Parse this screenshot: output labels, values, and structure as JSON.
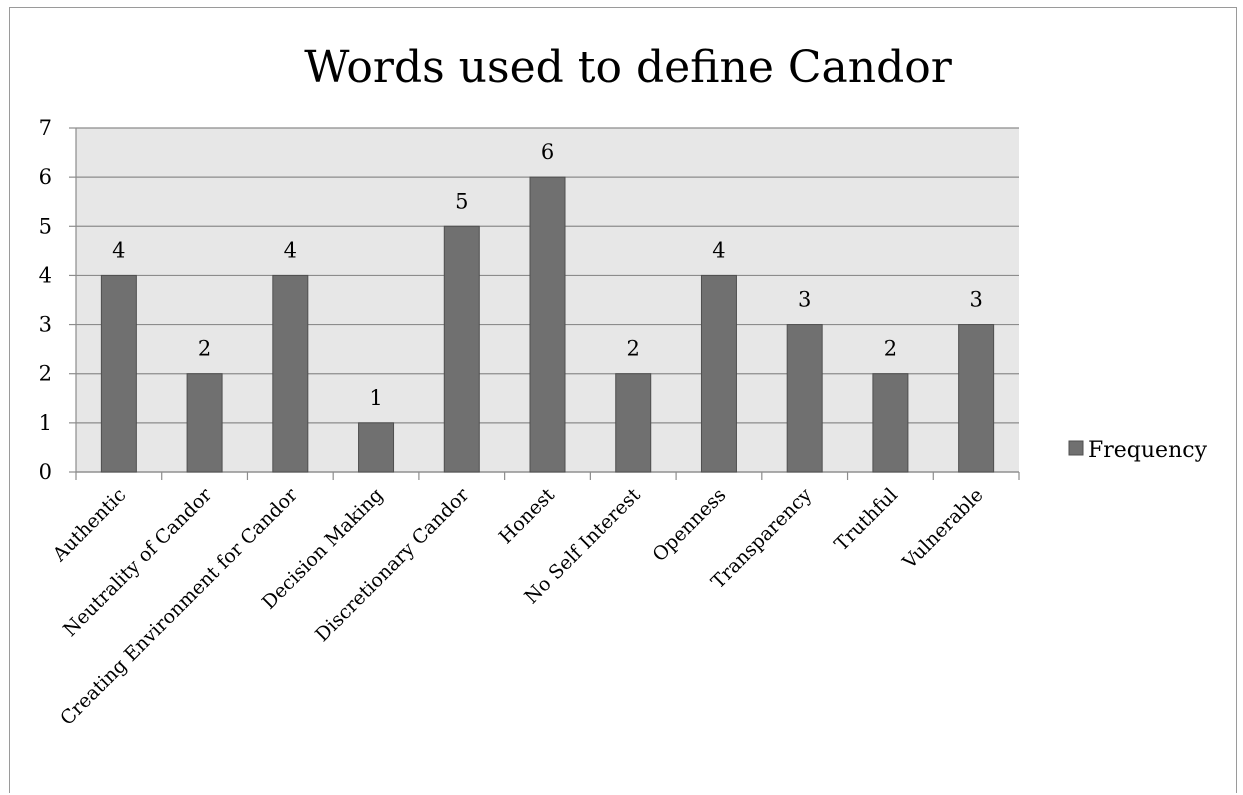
{
  "chart_data": {
    "type": "bar",
    "title": "Words used to define Candor",
    "categories": [
      "Authentic",
      "Neutrality of Candor",
      "Creating Environment for Candor",
      "Decision Making",
      "Discretionary Candor",
      "Honest",
      "No Self Interest",
      "Openness",
      "Transparency",
      "Truthful",
      "Vulnerable"
    ],
    "series": [
      {
        "name": "Frequency",
        "values": [
          4,
          2,
          4,
          1,
          5,
          6,
          2,
          4,
          3,
          2,
          3
        ]
      }
    ],
    "ylim": [
      0,
      7
    ],
    "yticks": [
      0,
      1,
      2,
      3,
      4,
      5,
      6,
      7
    ],
    "grid": true,
    "legend_position": "right",
    "data_labels": true,
    "colors": {
      "bar": "#707070",
      "bar_edge": "#4f4f4f",
      "plot_bg": "#e7e7e7",
      "grid": "#8c8c8c"
    }
  }
}
